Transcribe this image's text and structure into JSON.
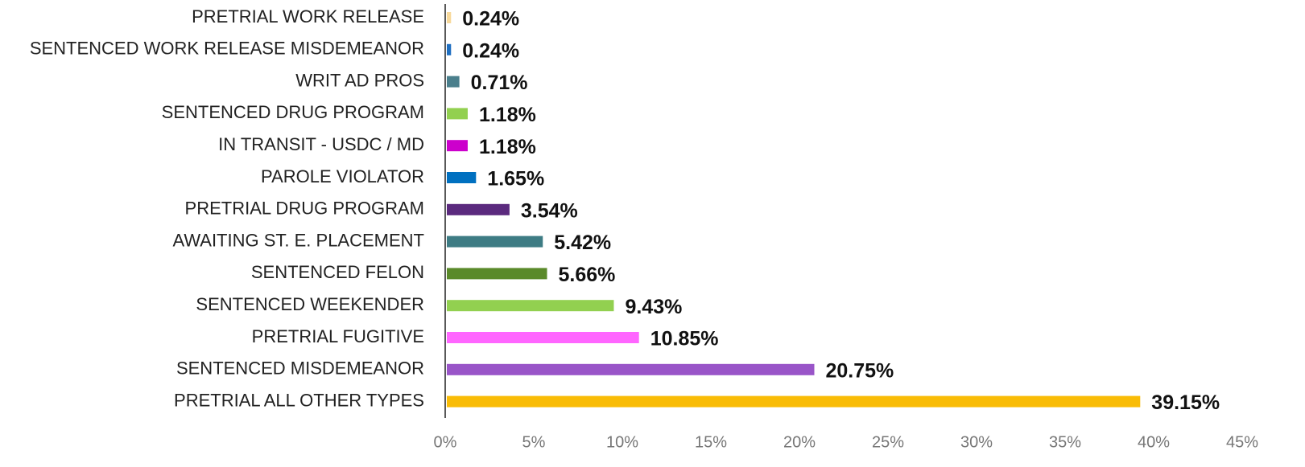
{
  "chart_data": {
    "type": "hbar",
    "categories": [
      "PRETRIAL WORK RELEASE",
      "SENTENCED WORK RELEASE MISDEMEANOR",
      "WRIT AD PROS",
      "SENTENCED DRUG PROGRAM",
      "IN TRANSIT - USDC / MD",
      "PAROLE VIOLATOR",
      "PRETRIAL DRUG PROGRAM",
      "AWAITING ST. E. PLACEMENT",
      "SENTENCED FELON",
      "SENTENCED WEEKENDER",
      "PRETRIAL FUGITIVE",
      "SENTENCED MISDEMEANOR",
      "PRETRIAL ALL OTHER TYPES"
    ],
    "values": [
      0.24,
      0.24,
      0.71,
      1.18,
      1.18,
      1.65,
      3.54,
      5.42,
      5.66,
      9.43,
      10.85,
      20.75,
      39.15
    ],
    "value_labels": [
      "0.24%",
      "0.24%",
      "0.71%",
      "1.18%",
      "1.18%",
      "1.65%",
      "3.54%",
      "5.42%",
      "5.66%",
      "9.43%",
      "10.85%",
      "20.75%",
      "39.15%"
    ],
    "colors": [
      "#f8d99b",
      "#1f6fc1",
      "#4a7f8c",
      "#92d050",
      "#cc00cc",
      "#0070c0",
      "#5b2a7e",
      "#3e7c84",
      "#5a8a2a",
      "#92d050",
      "#ff66ff",
      "#9955c8",
      "#f9bc06"
    ],
    "xlim": [
      0,
      45
    ],
    "xticks": [
      {
        "value": 0,
        "label": "0%"
      },
      {
        "value": 5,
        "label": "5%"
      },
      {
        "value": 10,
        "label": "10%"
      },
      {
        "value": 15,
        "label": "15%"
      },
      {
        "value": 20,
        "label": "20%"
      },
      {
        "value": 25,
        "label": "25%"
      },
      {
        "value": 30,
        "label": "30%"
      },
      {
        "value": 35,
        "label": "35%"
      },
      {
        "value": 40,
        "label": "40%"
      },
      {
        "value": 45,
        "label": "45%"
      }
    ]
  }
}
